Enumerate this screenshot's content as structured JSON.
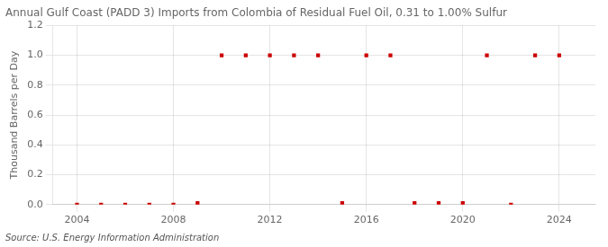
{
  "chart_data": {
    "type": "scatter",
    "title": "Annual Gulf Coast (PADD 3) Imports from Colombia of Residual Fuel Oil, 0.31 to 1.00% Sulfur",
    "ylabel": "Thousand Barrels per Day",
    "annotation": "Source: U.S. Energy Information Administration",
    "x": [
      2004,
      2005,
      2006,
      2007,
      2008,
      2009,
      2010,
      2011,
      2012,
      2013,
      2014,
      2015,
      2016,
      2017,
      2018,
      2019,
      2020,
      2021,
      2022,
      2023,
      2024
    ],
    "values": [
      0.0,
      0.0,
      0.0,
      0.0,
      0.0,
      0.01,
      1.0,
      1.0,
      1.0,
      1.0,
      1.0,
      0.01,
      1.0,
      1.0,
      0.01,
      0.01,
      0.01,
      1.0,
      0.0,
      1.0,
      1.0
    ],
    "color": "#cc0000",
    "marker": "square",
    "xlim": [
      2003.0,
      2025.5
    ],
    "xticks": [
      2004,
      2008,
      2012,
      2016,
      2020,
      2024
    ],
    "ylim": [
      0.0,
      1.2
    ],
    "yticks": [
      {
        "value": 0.0,
        "label": "0.0"
      },
      0.2,
      0.4,
      0.6,
      0.8,
      {
        "value": 1.0,
        "label": "1.0"
      },
      1.2
    ],
    "grid": true
  }
}
